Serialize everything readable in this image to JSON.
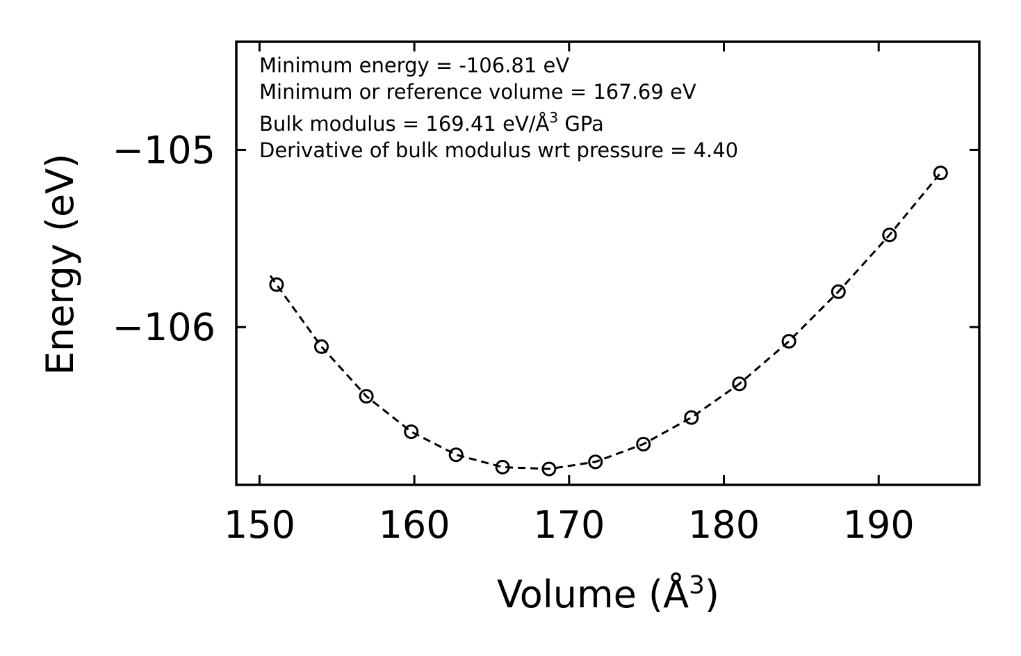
{
  "chart_data": {
    "type": "scatter",
    "title": "",
    "xlabel": "Volume (Å",
    "xlabel_sup": "3",
    "xlabel_close": ")",
    "ylabel": "Energy (eV)",
    "xlim": [
      148.5,
      196.5
    ],
    "ylim": [
      -106.89,
      -104.39
    ],
    "xticks": [
      150,
      160,
      170,
      180,
      190
    ],
    "xtick_labels": [
      "150",
      "160",
      "170",
      "180",
      "190"
    ],
    "yticks": [
      -106,
      -105
    ],
    "ytick_labels": [
      "−106",
      "−105"
    ],
    "grid": false,
    "series": [
      {
        "name": "data points",
        "style": "open-circle",
        "x": [
          151.1,
          154.0,
          156.9,
          159.8,
          162.7,
          165.7,
          168.7,
          171.7,
          174.8,
          177.9,
          181.0,
          184.2,
          187.4,
          190.7,
          194.0
        ],
        "y": [
          -105.76,
          -106.11,
          -106.39,
          -106.59,
          -106.72,
          -106.79,
          -106.8,
          -106.76,
          -106.66,
          -106.51,
          -106.32,
          -106.08,
          -105.8,
          -105.48,
          -105.13
        ]
      },
      {
        "name": "fit",
        "style": "dashed-line",
        "x": [
          150.7,
          151.1,
          154.0,
          156.9,
          159.8,
          162.7,
          165.7,
          168.7,
          171.7,
          174.8,
          177.9,
          181.0,
          184.2,
          187.4,
          190.7,
          194.0
        ],
        "y": [
          -105.71,
          -105.76,
          -106.11,
          -106.39,
          -106.59,
          -106.72,
          -106.79,
          -106.8,
          -106.76,
          -106.66,
          -106.51,
          -106.32,
          -106.08,
          -105.8,
          -105.48,
          -105.13
        ]
      }
    ],
    "annotations": [
      {
        "text": "Minimum energy = -106.81 eV"
      },
      {
        "text": "Minimum or reference volume = 167.69 eV"
      },
      {
        "text": "Bulk modulus = 169.41 eV/Å",
        "sup": "3",
        "tail": " GPa"
      },
      {
        "text": "Derivative of bulk modulus wrt pressure = 4.40"
      }
    ]
  }
}
